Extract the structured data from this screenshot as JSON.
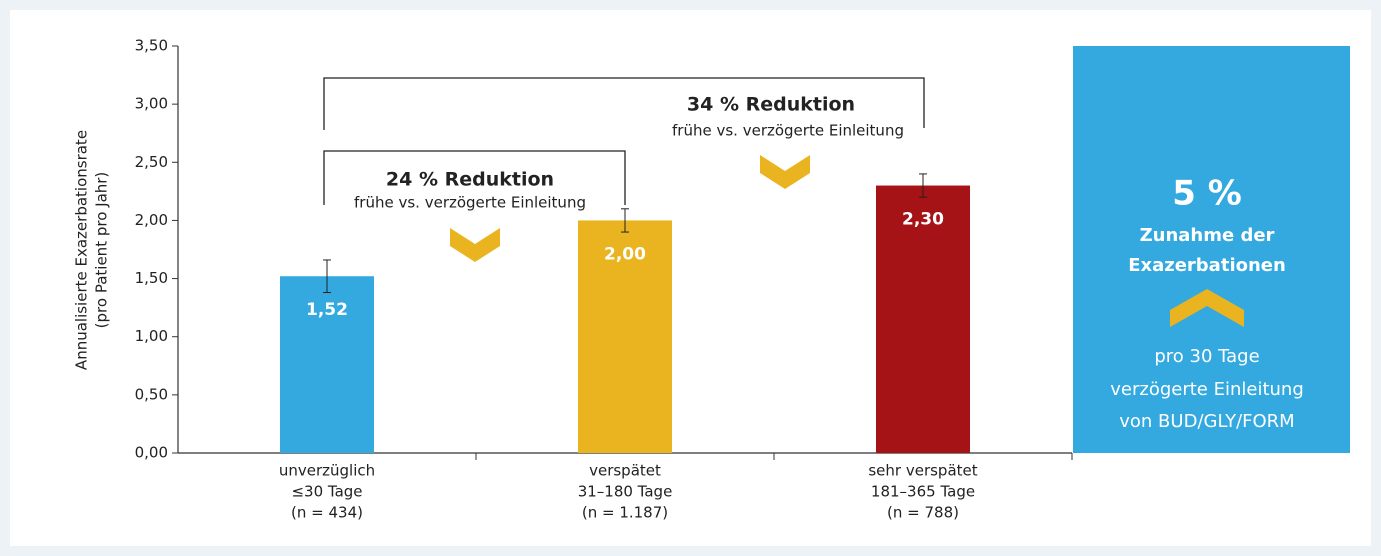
{
  "chart_data": {
    "type": "bar",
    "y_label": [
      "Annualisierte Exazerbationsrate",
      "(pro Patient pro Jahr)"
    ],
    "categories": [
      [
        "unverzüglich",
        "≤30 Tage",
        "(n = 434)"
      ],
      [
        "verspätet",
        "31–180 Tage",
        "(n = 1.187)"
      ],
      [
        "sehr verspätet",
        "181–365 Tage",
        "(n = 788)"
      ]
    ],
    "values": [
      1.52,
      2.0,
      2.3
    ],
    "value_labels": [
      "1,52",
      "2,00",
      "2,30"
    ],
    "errors": [
      0.14,
      0.1,
      0.1
    ],
    "colors": [
      "#33a9e0",
      "#eab320",
      "#a51317"
    ],
    "ylim": [
      0,
      3.5
    ],
    "yticks": [
      {
        "value": 0,
        "label": "0,00"
      },
      {
        "value": 0.5,
        "label": "0,50"
      },
      {
        "value": 1,
        "label": "1,00"
      },
      {
        "value": 1.5,
        "label": "1,50"
      },
      {
        "value": 2,
        "label": "2,00"
      },
      {
        "value": 2.5,
        "label": "2,50"
      },
      {
        "value": 3,
        "label": "3,00"
      },
      {
        "value": 3.5,
        "label": "3,50"
      }
    ],
    "annotations": [
      {
        "title": "24 % Reduktion",
        "text": "frühe vs. verzögerte Einleitung"
      },
      {
        "title": "34 % Reduktion",
        "text": "frühe vs. verzögerte Einleitung"
      }
    ],
    "side_box": {
      "headline": "5 %",
      "title_lines": [
        "Zunahme der",
        "Exazerbationen"
      ],
      "text_lines": [
        "pro 30 Tage",
        "verzögerte  Einleitung",
        "von BUD/GLY/FORM"
      ]
    }
  }
}
